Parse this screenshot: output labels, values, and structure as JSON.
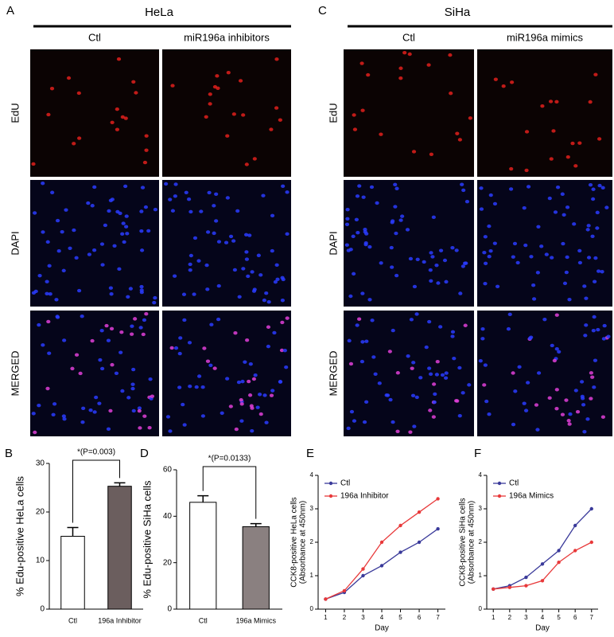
{
  "panels": [
    {
      "label": "A",
      "cell_line": "HeLa",
      "columns": [
        "Ctl",
        "miR196a inhibitors"
      ],
      "rows": [
        "EdU",
        "DAPI",
        "MERGED"
      ]
    },
    {
      "label": "C",
      "cell_line": "SiHa",
      "columns": [
        "Ctl",
        "miR196a mimics"
      ],
      "rows": [
        "EdU",
        "DAPI",
        "MERGED"
      ]
    }
  ],
  "chart_data": [
    {
      "type": "bar",
      "panel": "B",
      "ylabel": "% Edu-positive HeLa cells",
      "categories": [
        "Ctl",
        "196a Inhibitor"
      ],
      "values": [
        15,
        25.3
      ],
      "errors": [
        1.8,
        0.7
      ],
      "colors": [
        "#ffffff",
        "#6b5e5e"
      ],
      "ylim": [
        0,
        30
      ],
      "yticks": [
        0,
        10,
        20,
        30
      ],
      "annotation": "*(P=0.003)"
    },
    {
      "type": "bar",
      "panel": "D",
      "ylabel": "% Edu-positive SiHa cells",
      "categories": [
        "Ctl",
        "196a Mimics"
      ],
      "values": [
        46,
        35.5
      ],
      "errors": [
        2.8,
        1.3
      ],
      "colors": [
        "#ffffff",
        "#8a8080"
      ],
      "ylim": [
        0,
        60
      ],
      "yticks": [
        0,
        20,
        40,
        60
      ],
      "annotation": "*(P=0.0133)"
    },
    {
      "type": "line",
      "panel": "E",
      "ylabel": [
        "CCK8-positive HeLa cells",
        "(Absorbance at 450nm)"
      ],
      "xlabel": "Day",
      "x": [
        1,
        2,
        3,
        4,
        5,
        6,
        7
      ],
      "xlim": [
        0.6,
        7.4
      ],
      "xticks": [
        1,
        2,
        3,
        4,
        5,
        6,
        7
      ],
      "ylim": [
        0,
        4
      ],
      "yticks": [
        0,
        1,
        2,
        3,
        4
      ],
      "legend": "upper left",
      "series": [
        {
          "name": "Ctl",
          "color": "#3a3a9a",
          "values": [
            0.3,
            0.5,
            1.0,
            1.3,
            1.7,
            2.0,
            2.4
          ]
        },
        {
          "name": "196a Inhibitor",
          "color": "#e8393a",
          "values": [
            0.3,
            0.55,
            1.2,
            2.0,
            2.5,
            2.9,
            3.3
          ]
        }
      ]
    },
    {
      "type": "line",
      "panel": "F",
      "ylabel": [
        "CCK8-positive SiHa cells",
        "(Absorbance at 450nm)"
      ],
      "xlabel": "Day",
      "x": [
        1,
        2,
        3,
        4,
        5,
        6,
        7
      ],
      "xlim": [
        0.6,
        7.4
      ],
      "xticks": [
        1,
        2,
        3,
        4,
        5,
        6,
        7
      ],
      "ylim": [
        0,
        4
      ],
      "yticks": [
        0,
        1,
        2,
        3,
        4
      ],
      "legend": "upper left",
      "series": [
        {
          "name": "Ctl",
          "color": "#3a3a9a",
          "values": [
            0.6,
            0.7,
            0.95,
            1.35,
            1.75,
            2.5,
            3.0
          ]
        },
        {
          "name": "196a Mimics",
          "color": "#e8393a",
          "values": [
            0.6,
            0.65,
            0.7,
            0.85,
            1.4,
            1.75,
            2.0
          ]
        }
      ]
    }
  ]
}
